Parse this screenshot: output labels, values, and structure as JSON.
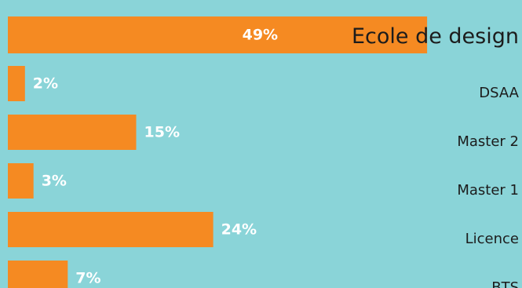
{
  "chart_data": {
    "type": "bar",
    "orientation": "horizontal",
    "categories": [
      "Ecole de design",
      "DSAA",
      "Master 2",
      "Master 1",
      "Licence",
      "BTS"
    ],
    "values": [
      49,
      2,
      15,
      3,
      24,
      7
    ],
    "value_labels": [
      "49%",
      "2%",
      "15%",
      "3%",
      "24%",
      "7%"
    ],
    "title": "",
    "xlabel": "",
    "ylabel": "",
    "xlim": [
      0,
      100
    ],
    "grid": false,
    "legend": "none"
  },
  "colors": {
    "background": "#8ad4d8",
    "bar": "#f58a22",
    "value_text": "#ffffff",
    "category_text": "#1c1c1c"
  }
}
